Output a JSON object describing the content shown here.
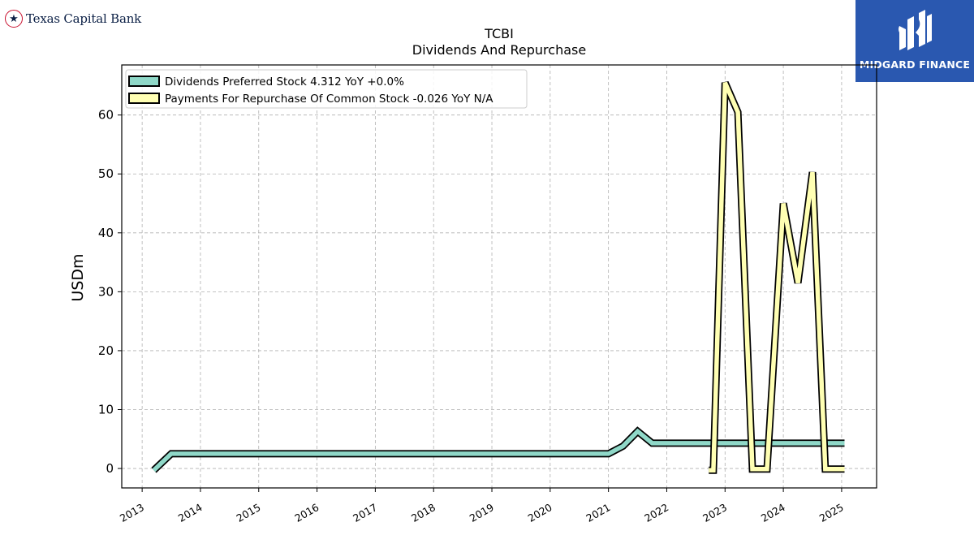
{
  "brand_left": {
    "name": "Texas Capital Bank"
  },
  "brand_right": {
    "name": "MIDGARD FINANCE",
    "color": "#2a58b0"
  },
  "chart_data": {
    "type": "line",
    "title": "TCBI",
    "subtitle": "Dividends And Repurchase",
    "xlabel": "",
    "ylabel": "USDm",
    "xlim": [
      2012.65,
      2025.6
    ],
    "ylim": [
      -3.3,
      68.5
    ],
    "xticks": [
      "2013",
      "2014",
      "2015",
      "2016",
      "2017",
      "2018",
      "2019",
      "2020",
      "2021",
      "2022",
      "2023",
      "2024",
      "2025"
    ],
    "yticks": [
      0,
      10,
      20,
      30,
      40,
      50,
      60
    ],
    "grid": true,
    "legend_position": "top-left",
    "series": [
      {
        "name": "Dividends Preferred Stock  4.312 YoY +0.0%",
        "color": "#8fd8c8",
        "points": [
          [
            2013.2,
            -0.3
          ],
          [
            2013.5,
            2.5
          ],
          [
            2021.0,
            2.5
          ],
          [
            2021.25,
            3.8
          ],
          [
            2021.5,
            6.3
          ],
          [
            2021.75,
            4.3
          ],
          [
            2025.05,
            4.3
          ]
        ]
      },
      {
        "name": "Payments For Repurchase Of Common Stock  -0.026 YoY N/A",
        "color": "#ffffb3",
        "points": [
          [
            2022.72,
            -0.3
          ],
          [
            2022.8,
            -0.3
          ],
          [
            2023.0,
            65.5
          ],
          [
            2023.22,
            60.5
          ],
          [
            2023.47,
            -0.1
          ],
          [
            2023.72,
            -0.1
          ],
          [
            2024.0,
            45.0
          ],
          [
            2024.25,
            31.5
          ],
          [
            2024.5,
            50.3
          ],
          [
            2024.72,
            -0.1
          ],
          [
            2025.05,
            -0.1
          ]
        ]
      }
    ]
  }
}
